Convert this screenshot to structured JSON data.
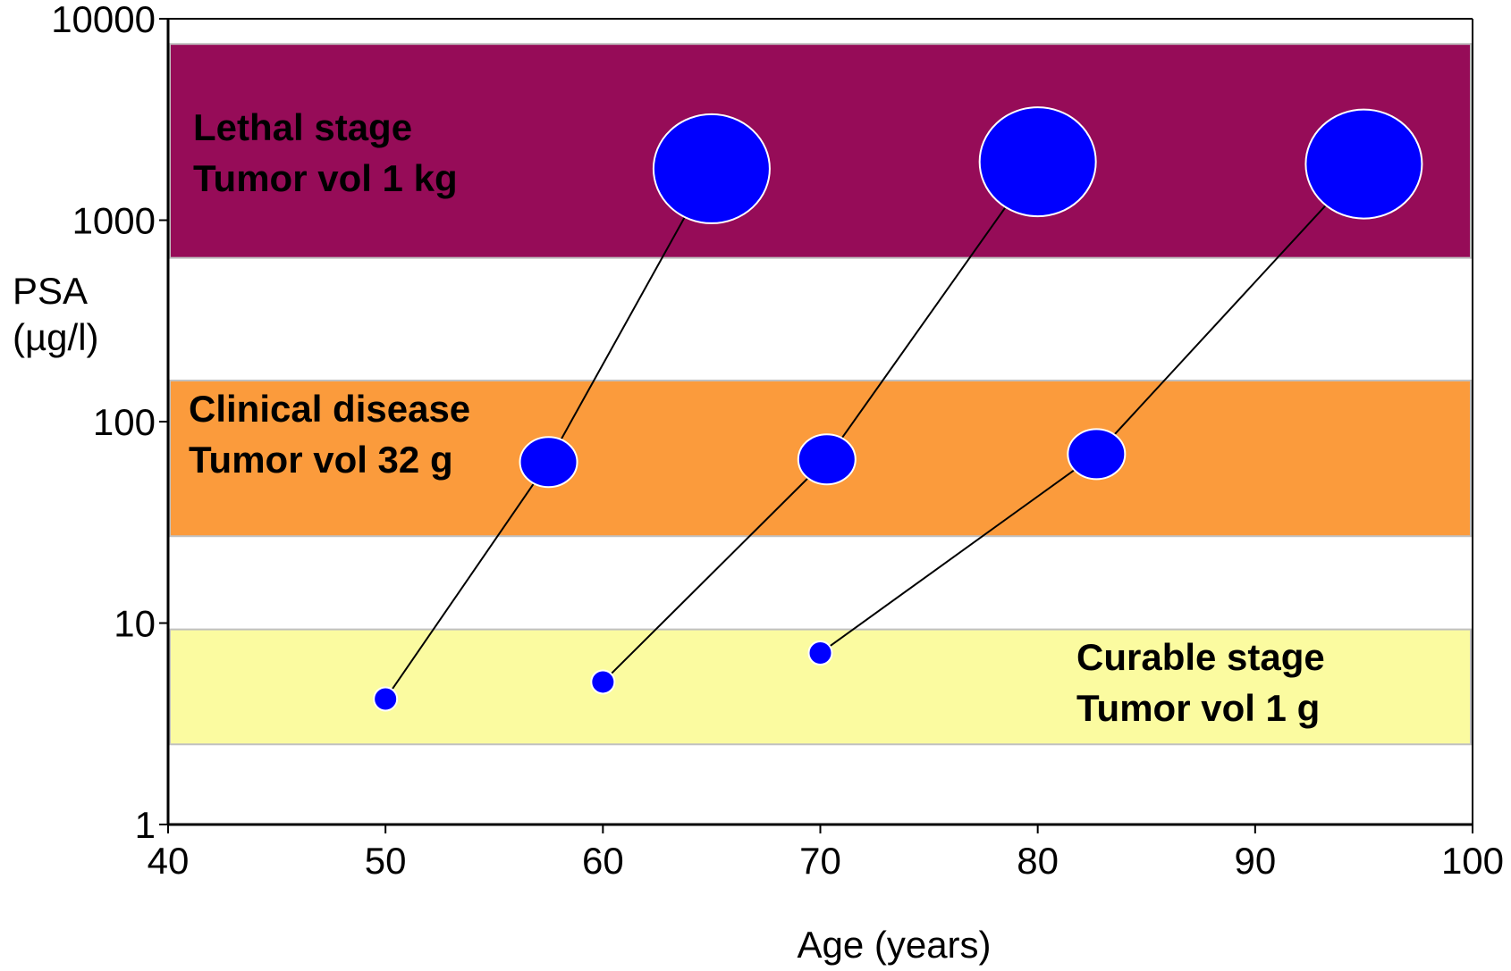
{
  "chart_data": {
    "type": "scatter",
    "xlabel": "Age (years)",
    "ylabel": [
      "PSA",
      "(µg/l)"
    ],
    "xlim": [
      40,
      100
    ],
    "xticks": [
      40,
      50,
      60,
      70,
      80,
      90,
      100
    ],
    "ylim": [
      1,
      10000
    ],
    "yticks": [
      1,
      10,
      100,
      1000,
      10000
    ],
    "yscale": "log",
    "bands": [
      {
        "label": [
          "Lethal stage",
          "Tumor vol 1 kg"
        ],
        "range": [
          650,
          7500
        ],
        "color": "#960c58",
        "text_color": "#c8d8e8"
      },
      {
        "label": [
          "Clinical disease",
          "Tumor vol 32 g"
        ],
        "range": [
          27,
          160
        ],
        "color": "#fb9b3c",
        "text_color": "#0000ff"
      },
      {
        "label": [
          "Curable stage",
          "Tumor vol 1 g"
        ],
        "range": [
          2.5,
          9.3
        ],
        "color": "#fbfba0",
        "text_color": "#0000ff"
      }
    ],
    "series": [
      {
        "x": [
          50,
          57.5,
          65
        ],
        "values": [
          4.2,
          63,
          1800
        ],
        "color": "#0000ff"
      },
      {
        "x": [
          60,
          70.3,
          80
        ],
        "values": [
          5.1,
          65,
          1950
        ],
        "color": "#0000ff"
      },
      {
        "x": [
          70,
          82.7,
          95
        ],
        "values": [
          7.1,
          69,
          1900
        ],
        "color": "#0000ff"
      }
    ]
  }
}
